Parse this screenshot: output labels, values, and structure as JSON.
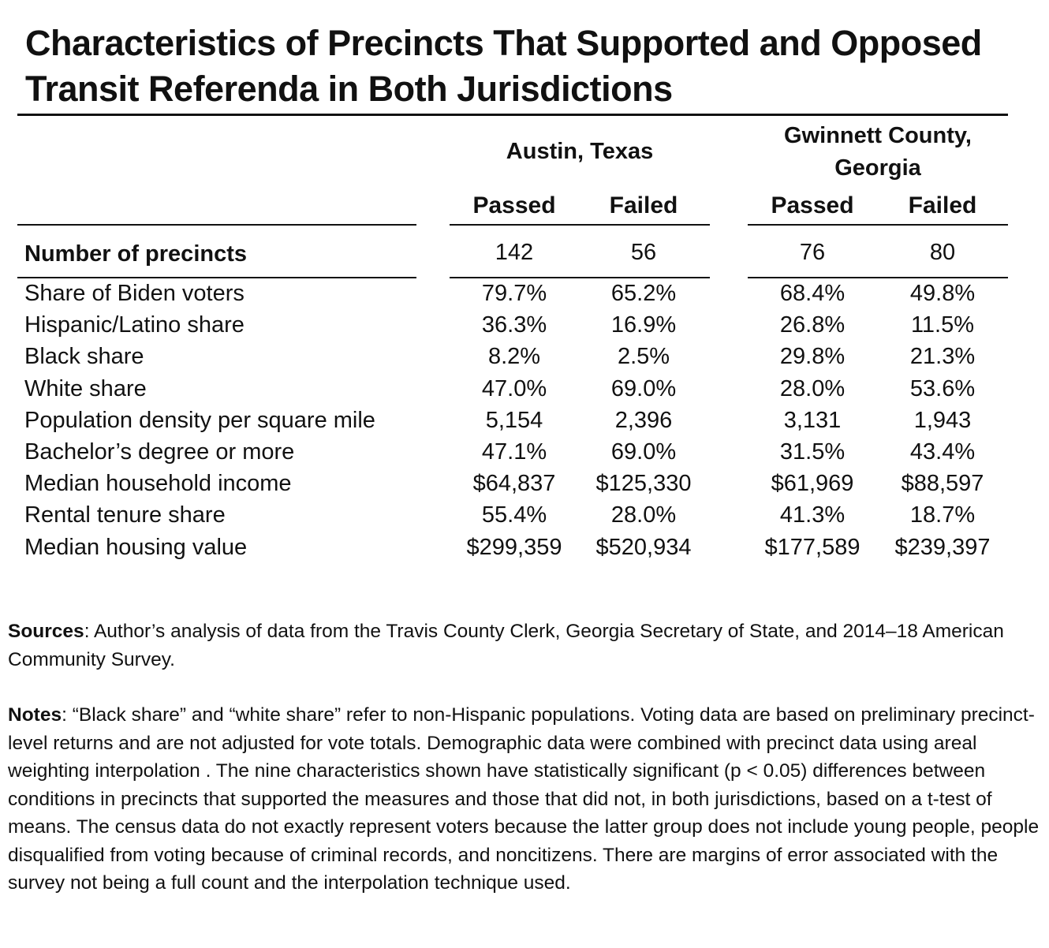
{
  "title": "Characteristics of Precincts That Supported and Opposed Transit Referenda in Both Jurisdictions",
  "table": {
    "groups": [
      "Austin, Texas",
      "Gwinnett County, Georgia"
    ],
    "columns": [
      "Passed",
      "Failed",
      "Passed",
      "Failed"
    ],
    "rows": [
      [
        "Number of precincts",
        "142",
        "56",
        "76",
        "80"
      ],
      [
        "Share of Biden voters",
        "79.7%",
        "65.2%",
        "68.4%",
        "49.8%"
      ],
      [
        "Hispanic/Latino share",
        "36.3%",
        "16.9%",
        "26.8%",
        "11.5%"
      ],
      [
        "Black share",
        "8.2%",
        "2.5%",
        "29.8%",
        "21.3%"
      ],
      [
        "White share",
        "47.0%",
        "69.0%",
        "28.0%",
        "53.6%"
      ],
      [
        "Population density per square mile",
        "5,154",
        "2,396",
        "3,131",
        "1,943"
      ],
      [
        "Bachelor’s degree or more",
        "47.1%",
        "69.0%",
        "31.5%",
        "43.4%"
      ],
      [
        "Median household income",
        "$64,837",
        "$125,330",
        "$61,969",
        "$88,597"
      ],
      [
        "Rental tenure share",
        "55.4%",
        "28.0%",
        "41.3%",
        "18.7%"
      ],
      [
        "Median housing value",
        "$299,359",
        "$520,934",
        "$177,589",
        "$239,397"
      ]
    ]
  },
  "sources": {
    "label": "Sources",
    "text": ": Author’s analysis of data from the Travis County Clerk, Georgia Secretary of State, and 2014–18 American Community Survey."
  },
  "notes": {
    "label": "Notes",
    "text": ": “Black share” and “white share” refer to non-Hispanic populations. Voting data are based on preliminary precinct-level returns and are not adjusted for vote totals. Demographic data were combined with precinct data using areal weighting interpolation . The nine characteristics shown have statistically significant (p < 0.05) differences between conditions in precincts that supported the measures and those that did not, in both jurisdictions, based on a t-test of means. The census data do not exactly represent voters because the latter group does not include young people, people disqualified from voting because of criminal records, and noncitizens. There are margins of error associated with the survey not being a full count and the interpolation technique used."
  }
}
